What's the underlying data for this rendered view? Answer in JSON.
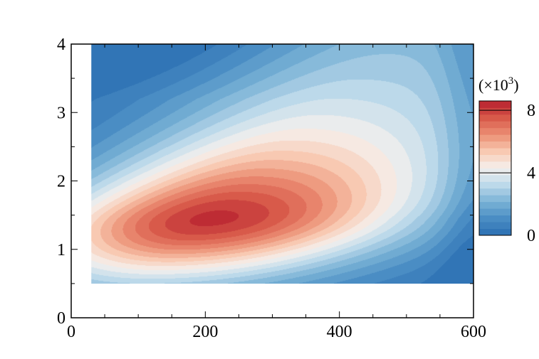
{
  "chart_data": {
    "type": "heatmap",
    "title": "",
    "xlabel": "",
    "ylabel": "",
    "xlim": [
      0,
      600
    ],
    "ylim": [
      0,
      4
    ],
    "x_ticks": [
      0,
      200,
      400,
      600
    ],
    "y_ticks": [
      0,
      1,
      2,
      3,
      4
    ],
    "x_tick_labels": [
      "0",
      "200",
      "400",
      "600"
    ],
    "y_tick_labels": [
      "0",
      "1",
      "2",
      "3",
      "4"
    ],
    "data_extent": {
      "x": [
        30,
        600
      ],
      "y": [
        0.5,
        4
      ]
    },
    "peak": {
      "x": 210,
      "y": 1.45,
      "value": 8.3
    },
    "colorbar": {
      "unit_label": "(×10³)",
      "unit_base": "(×10",
      "unit_exp": "3",
      "unit_close": ")",
      "range": [
        0,
        8.6
      ],
      "levels": 20,
      "ticks": [
        0,
        4,
        8
      ],
      "tick_labels": [
        "0",
        "4",
        "8"
      ],
      "colormap": [
        "#2b6fb3",
        "#4a8dc4",
        "#7ab2d6",
        "#bcd9ea",
        "#f5f1ee",
        "#f8c9b2",
        "#ec8f74",
        "#d85a4a",
        "#b8202e"
      ],
      "placement": "right"
    },
    "grid": false
  }
}
